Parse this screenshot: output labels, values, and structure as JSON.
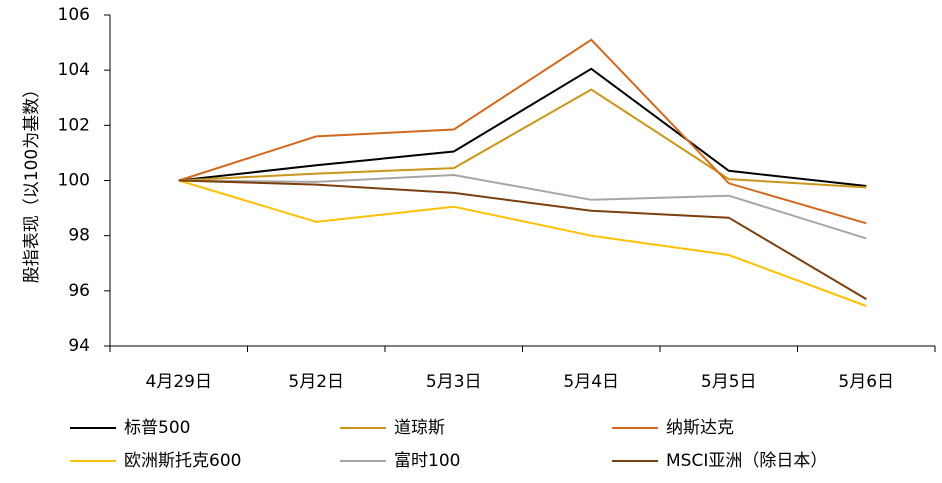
{
  "chart_data": {
    "type": "line",
    "title": "",
    "xlabel": "",
    "ylabel": "股指表现（以100为基数）",
    "categories": [
      "4月29日",
      "5月2日",
      "5月3日",
      "5月4日",
      "5月5日",
      "5月6日"
    ],
    "ylim": [
      94,
      106
    ],
    "yticks": [
      94,
      96,
      98,
      100,
      102,
      104,
      106
    ],
    "grid": false,
    "legend_position": "bottom",
    "series": [
      {
        "name": "标普500",
        "color": "#000000",
        "values": [
          100,
          100.55,
          101.05,
          104.05,
          100.35,
          99.8
        ]
      },
      {
        "name": "道琼斯",
        "color": "#C9961A",
        "values": [
          100,
          100.25,
          100.45,
          103.3,
          100.05,
          99.75
        ]
      },
      {
        "name": "纳斯达克",
        "color": "#D2691E",
        "values": [
          100,
          101.6,
          101.85,
          105.1,
          99.9,
          98.45
        ]
      },
      {
        "name": "欧洲斯托克600",
        "color": "#FFC000",
        "values": [
          100,
          98.5,
          99.05,
          98.0,
          97.3,
          95.45
        ]
      },
      {
        "name": "富时100",
        "color": "#A6A6A6",
        "values": [
          100,
          99.95,
          100.2,
          99.3,
          99.45,
          97.9
        ]
      },
      {
        "name": "MSCI亚洲（除日本）",
        "color": "#7B3F10",
        "values": [
          100,
          99.85,
          99.55,
          98.9,
          98.65,
          95.7
        ]
      }
    ]
  }
}
